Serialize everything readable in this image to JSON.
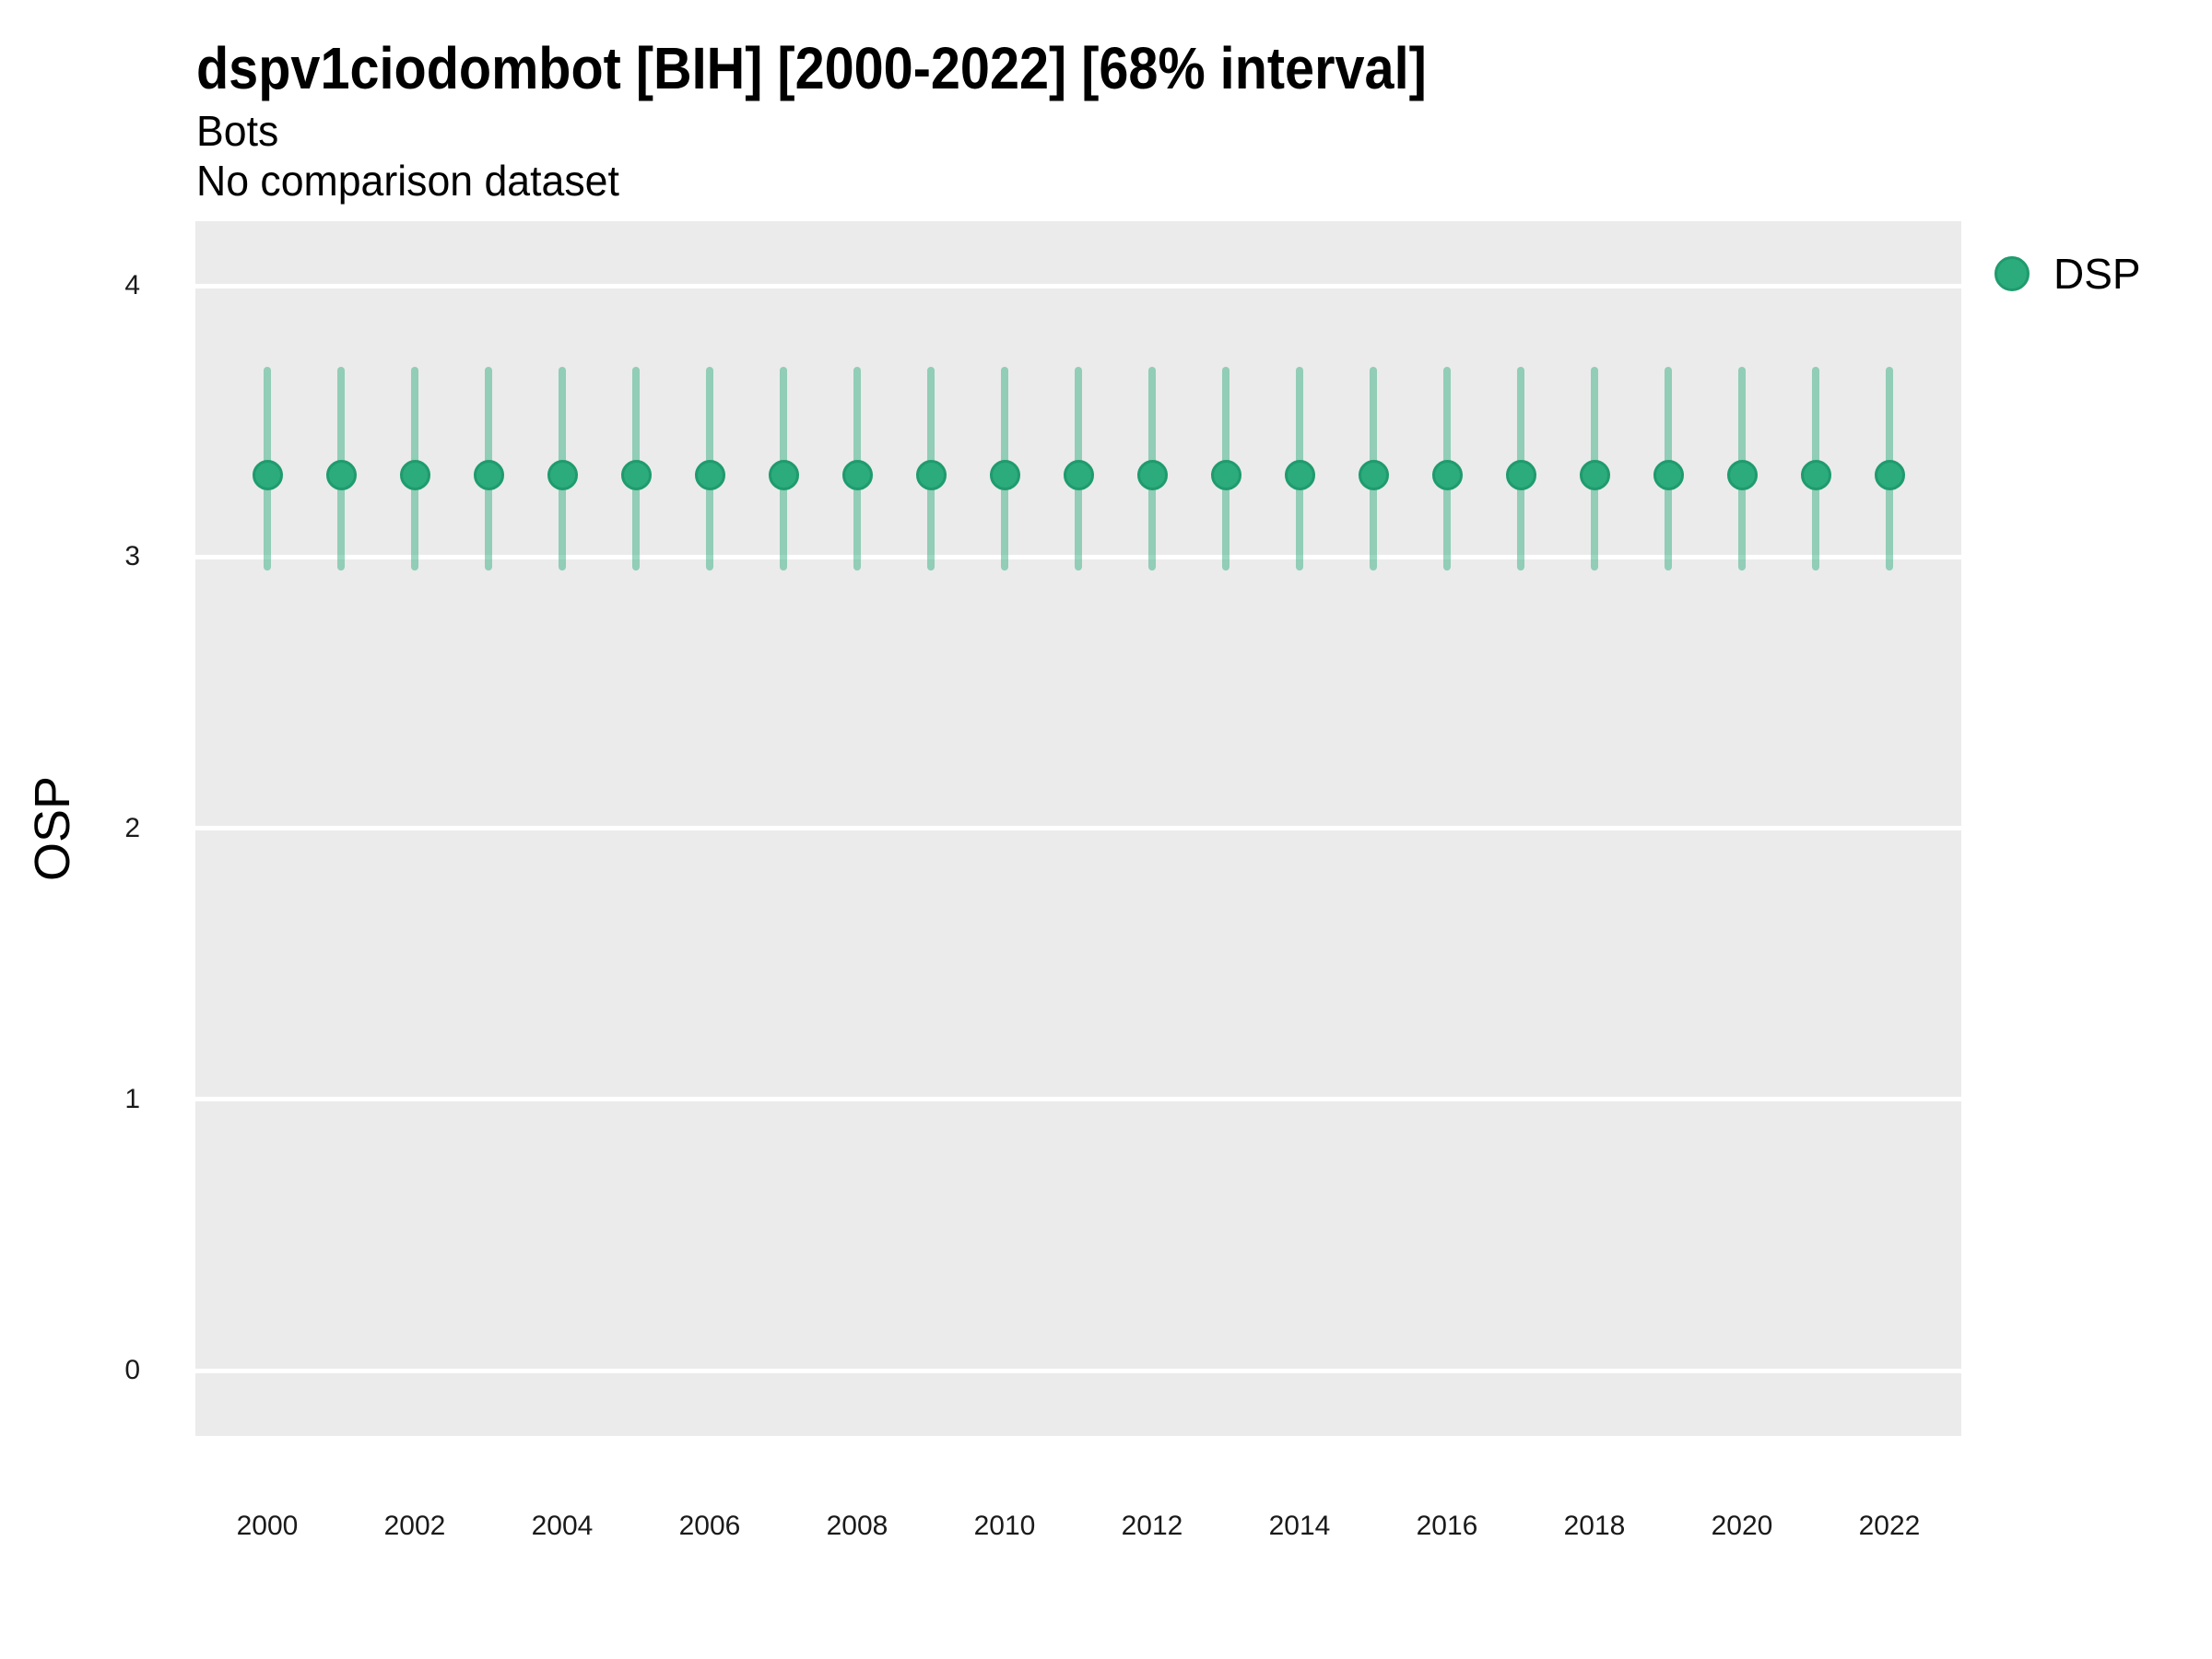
{
  "header": {
    "title": "dspv1ciodombot [BIH] [2000-2022] [68% interval]",
    "subtitle": "Bots",
    "comparison_note": "No comparison dataset"
  },
  "legend": {
    "label": "DSP"
  },
  "y_axis": {
    "label": "OSP",
    "ticks": [
      4,
      3,
      2,
      1,
      0
    ]
  },
  "x_axis": {
    "ticks": [
      2000,
      2002,
      2004,
      2006,
      2008,
      2010,
      2012,
      2014,
      2016,
      2018,
      2020,
      2022
    ]
  },
  "chart_data": {
    "type": "scatter",
    "title": "dspv1ciodombot [BIH] [2000-2022] [68% interval]",
    "subtitle": "Bots",
    "note": "No comparison dataset",
    "xlabel": "",
    "ylabel": "OSP",
    "xlim": [
      1999,
      2023
    ],
    "ylim": [
      -0.25,
      4.25
    ],
    "grid": "horizontal-major-only",
    "legend_position": "right-top",
    "interval_level": "68%",
    "series": [
      {
        "name": "DSP",
        "x": [
          2000,
          2001,
          2002,
          2003,
          2004,
          2005,
          2006,
          2007,
          2008,
          2009,
          2010,
          2011,
          2012,
          2013,
          2014,
          2015,
          2016,
          2017,
          2018,
          2019,
          2020,
          2021,
          2022
        ],
        "y": [
          3.3,
          3.3,
          3.3,
          3.3,
          3.3,
          3.3,
          3.3,
          3.3,
          3.3,
          3.3,
          3.3,
          3.3,
          3.3,
          3.3,
          3.3,
          3.3,
          3.3,
          3.3,
          3.3,
          3.3,
          3.3,
          3.3,
          3.3
        ],
        "y_lower_68": [
          2.95,
          2.95,
          2.95,
          2.95,
          2.95,
          2.95,
          2.95,
          2.95,
          2.95,
          2.95,
          2.95,
          2.95,
          2.95,
          2.95,
          2.95,
          2.95,
          2.95,
          2.95,
          2.95,
          2.95,
          2.95,
          2.95,
          2.95
        ],
        "y_upper_68": [
          3.7,
          3.7,
          3.7,
          3.7,
          3.7,
          3.7,
          3.7,
          3.7,
          3.7,
          3.7,
          3.7,
          3.7,
          3.7,
          3.7,
          3.7,
          3.7,
          3.7,
          3.7,
          3.7,
          3.7,
          3.7,
          3.7,
          3.7
        ]
      }
    ]
  },
  "colors": {
    "point_fill": "#2CAB7C",
    "point_stroke": "#1F9B6E",
    "interval_line": "rgba(46,172,126,0.48)",
    "panel_background": "#EBEBEB",
    "gridline": "#FFFFFF",
    "text": "#000000"
  }
}
